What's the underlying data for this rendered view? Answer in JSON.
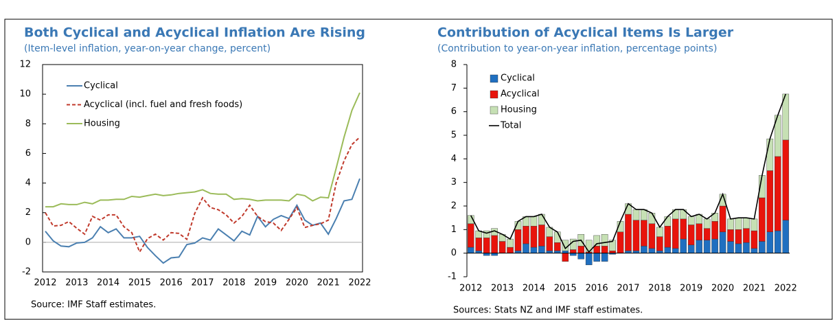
{
  "chart_data": [
    {
      "type": "line",
      "title": "Both Cyclical and Acyclical Inflation Are Rising",
      "subtitle": "(Item-level inflation, year-on-year change, percent)",
      "note": "Source: IMF Staff estimates.",
      "categories": [
        "2012",
        null,
        null,
        null,
        "2013",
        null,
        null,
        null,
        "2014",
        null,
        null,
        null,
        "2015",
        null,
        null,
        null,
        "2016",
        null,
        null,
        null,
        "2017",
        null,
        null,
        null,
        "2018",
        null,
        null,
        null,
        "2019",
        null,
        null,
        null,
        "2020",
        null,
        null,
        null,
        "2021",
        null,
        null,
        null,
        "2022"
      ],
      "series": [
        {
          "name": "Cyclical",
          "color": "#4a7fb0",
          "style": "solid",
          "values": [
            0.75,
            0.1,
            -0.25,
            -0.3,
            -0.05,
            0.0,
            0.3,
            1.05,
            0.65,
            0.9,
            0.3,
            0.3,
            0.4,
            -0.35,
            -0.9,
            -1.4,
            -1.05,
            -1.0,
            -0.15,
            -0.05,
            0.3,
            0.15,
            0.9,
            0.5,
            0.1,
            0.75,
            0.5,
            1.75,
            1.05,
            1.55,
            1.8,
            1.6,
            2.5,
            1.5,
            1.15,
            1.3,
            0.55,
            1.6,
            2.8,
            2.9,
            4.3
          ]
        },
        {
          "name": "Acyclical (incl. fuel and fresh foods)",
          "color": "#c0392b",
          "style": "dashed",
          "values": [
            2.0,
            1.1,
            1.15,
            1.4,
            0.95,
            0.55,
            1.75,
            1.5,
            1.85,
            1.85,
            1.05,
            0.65,
            -0.65,
            0.25,
            0.55,
            0.15,
            0.65,
            0.6,
            0.2,
            1.95,
            3.0,
            2.35,
            2.2,
            1.85,
            1.3,
            1.75,
            2.5,
            1.75,
            1.4,
            1.3,
            0.8,
            1.55,
            2.35,
            1.0,
            1.15,
            1.25,
            1.5,
            4.0,
            5.5,
            6.6,
            7.1
          ]
        },
        {
          "name": "Housing",
          "color": "#9bbb59",
          "style": "solid",
          "values": [
            2.4,
            2.4,
            2.6,
            2.55,
            2.55,
            2.7,
            2.6,
            2.85,
            2.85,
            2.9,
            2.9,
            3.1,
            3.05,
            3.15,
            3.25,
            3.15,
            3.2,
            3.3,
            3.35,
            3.4,
            3.55,
            3.3,
            3.25,
            3.25,
            2.9,
            2.95,
            2.9,
            2.8,
            2.85,
            2.85,
            2.85,
            2.8,
            3.25,
            3.15,
            2.8,
            3.05,
            3.0,
            5.0,
            7.1,
            8.9,
            10.1
          ]
        }
      ],
      "ylim": [
        -2,
        12
      ],
      "yticks": [
        -2,
        0,
        2,
        4,
        6,
        8,
        10,
        12
      ],
      "frame": true
    },
    {
      "type": "bar",
      "title": "Contribution of Acyclical Items Is Larger",
      "subtitle": "(Contribution to year-on-year inflation, percentage points)",
      "note": "Sources: Stats NZ and IMF staff estimates.",
      "stacked": true,
      "categories": [
        "2012",
        null,
        null,
        null,
        "2013",
        null,
        null,
        null,
        "2014",
        null,
        null,
        null,
        "2015",
        null,
        null,
        null,
        "2016",
        null,
        null,
        null,
        "2017",
        null,
        null,
        null,
        "2018",
        null,
        null,
        null,
        "2019",
        null,
        null,
        null,
        "2020",
        null,
        null,
        null,
        "2021",
        null,
        null,
        null,
        "2022"
      ],
      "series": [
        {
          "name": "Cyclical",
          "color": "#1f6fc0",
          "values": [
            0.25,
            0.1,
            -0.1,
            -0.1,
            0.0,
            0.0,
            0.1,
            0.4,
            0.25,
            0.3,
            0.1,
            0.1,
            0.1,
            -0.1,
            -0.25,
            -0.5,
            -0.35,
            -0.35,
            -0.05,
            0.0,
            0.1,
            0.1,
            0.3,
            0.2,
            0.1,
            0.25,
            0.2,
            0.6,
            0.35,
            0.55,
            0.55,
            0.6,
            0.9,
            0.5,
            0.4,
            0.45,
            0.2,
            0.5,
            0.9,
            0.95,
            1.4
          ]
        },
        {
          "name": "Acyclical",
          "color": "#e8140c",
          "values": [
            1.0,
            0.55,
            0.65,
            0.75,
            0.5,
            0.25,
            0.9,
            0.75,
            0.9,
            0.9,
            0.6,
            0.35,
            -0.35,
            0.15,
            0.3,
            0.05,
            0.3,
            0.3,
            0.1,
            0.9,
            1.55,
            1.3,
            1.1,
            1.05,
            0.6,
            0.9,
            1.25,
            0.85,
            0.85,
            0.7,
            0.5,
            0.75,
            1.1,
            0.5,
            0.6,
            0.6,
            0.75,
            1.85,
            2.6,
            3.15,
            3.4
          ]
        },
        {
          "name": "Housing",
          "color": "#c6e0b4",
          "values": [
            0.35,
            0.3,
            0.3,
            0.3,
            0.3,
            0.35,
            0.35,
            0.4,
            0.4,
            0.45,
            0.4,
            0.45,
            0.45,
            0.45,
            0.5,
            0.5,
            0.45,
            0.5,
            0.45,
            0.45,
            0.45,
            0.45,
            0.45,
            0.45,
            0.4,
            0.4,
            0.4,
            0.4,
            0.35,
            0.4,
            0.4,
            0.35,
            0.5,
            0.45,
            0.5,
            0.45,
            0.5,
            0.95,
            1.35,
            1.75,
            1.95
          ]
        },
        {
          "name": "Total",
          "color": "#000000",
          "type": "line",
          "values": [
            1.6,
            0.95,
            0.85,
            0.95,
            0.8,
            0.6,
            1.35,
            1.55,
            1.55,
            1.65,
            1.1,
            0.9,
            0.2,
            0.5,
            0.55,
            0.05,
            0.4,
            0.45,
            0.5,
            1.35,
            2.1,
            1.85,
            1.85,
            1.7,
            1.1,
            1.55,
            1.85,
            1.85,
            1.55,
            1.65,
            1.45,
            1.7,
            2.5,
            1.45,
            1.5,
            1.5,
            1.45,
            3.3,
            4.85,
            5.85,
            6.75
          ]
        }
      ],
      "ylim": [
        -1,
        8
      ],
      "yticks": [
        -1,
        0,
        1,
        2,
        3,
        4,
        5,
        6,
        7,
        8
      ],
      "frame": false
    }
  ]
}
